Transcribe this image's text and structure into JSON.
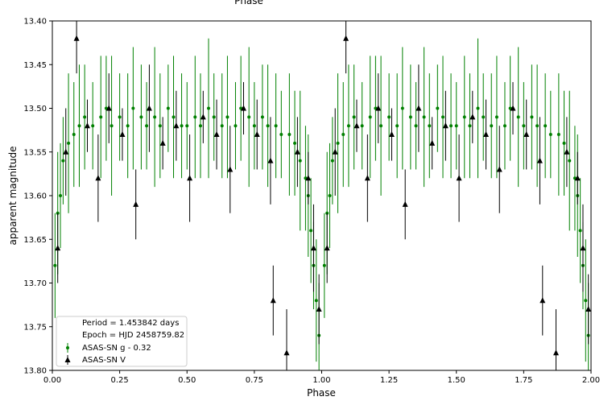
{
  "chart_data": {
    "type": "scatter",
    "top_title": "Phase",
    "xlabel": "Phase",
    "ylabel": "apparent magnitude",
    "xlim": [
      0.0,
      2.0
    ],
    "ylim": [
      13.8,
      13.4
    ],
    "y_inverted": true,
    "grid": false,
    "x_ticks": [
      "0.00",
      "0.25",
      "0.50",
      "0.75",
      "1.00",
      "1.25",
      "1.50",
      "1.75",
      "2.00"
    ],
    "y_ticks": [
      "13.40",
      "13.45",
      "13.50",
      "13.55",
      "13.60",
      "13.65",
      "13.70",
      "13.75",
      "13.80"
    ],
    "legend": {
      "placement": "lower-left",
      "entries": [
        "Period = 1.453842 days",
        "Epoch = HJD 2458759.82",
        "ASAS-SN g - 0.32",
        "ASAS-SN V"
      ]
    },
    "series": [
      {
        "name": "ASAS-SN g - 0.32",
        "marker": "small-dot-with-errorbar",
        "color": "#008000",
        "phase": [
          0.01,
          0.02,
          0.03,
          0.04,
          0.06,
          0.08,
          0.1,
          0.12,
          0.15,
          0.18,
          0.2,
          0.22,
          0.25,
          0.28,
          0.3,
          0.33,
          0.35,
          0.38,
          0.4,
          0.43,
          0.45,
          0.48,
          0.5,
          0.53,
          0.55,
          0.58,
          0.6,
          0.63,
          0.65,
          0.68,
          0.7,
          0.73,
          0.75,
          0.78,
          0.8,
          0.83,
          0.85,
          0.88,
          0.9,
          0.92,
          0.94,
          0.95,
          0.96,
          0.97,
          0.98,
          0.99
        ],
        "magnitude": [
          13.68,
          13.62,
          13.6,
          13.56,
          13.54,
          13.53,
          13.52,
          13.51,
          13.52,
          13.51,
          13.5,
          13.52,
          13.51,
          13.52,
          13.5,
          13.51,
          13.52,
          13.51,
          13.52,
          13.5,
          13.51,
          13.52,
          13.52,
          13.51,
          13.52,
          13.5,
          13.51,
          13.52,
          13.51,
          13.52,
          13.5,
          13.51,
          13.52,
          13.51,
          13.52,
          13.52,
          13.53,
          13.53,
          13.54,
          13.56,
          13.58,
          13.6,
          13.64,
          13.68,
          13.72,
          13.76
        ],
        "error": [
          0.06,
          0.07,
          0.06,
          0.05,
          0.08,
          0.06,
          0.07,
          0.06,
          0.05,
          0.07,
          0.06,
          0.08,
          0.05,
          0.06,
          0.07,
          0.06,
          0.05,
          0.08,
          0.06,
          0.05,
          0.07,
          0.06,
          0.05,
          0.07,
          0.06,
          0.08,
          0.05,
          0.06,
          0.07,
          0.05,
          0.06,
          0.08,
          0.05,
          0.06,
          0.07,
          0.06,
          0.05,
          0.07,
          0.06,
          0.08,
          0.06,
          0.07,
          0.06,
          0.05,
          0.07,
          0.06
        ]
      },
      {
        "name": "ASAS-SN V",
        "marker": "triangle-up",
        "color": "#000000",
        "phase": [
          0.02,
          0.05,
          0.09,
          0.13,
          0.17,
          0.21,
          0.26,
          0.31,
          0.36,
          0.41,
          0.46,
          0.51,
          0.56,
          0.61,
          0.66,
          0.71,
          0.76,
          0.81,
          0.82,
          0.87,
          0.91,
          0.95,
          0.97,
          0.99
        ],
        "magnitude": [
          13.66,
          13.55,
          13.42,
          13.52,
          13.58,
          13.5,
          13.53,
          13.61,
          13.5,
          13.54,
          13.52,
          13.58,
          13.51,
          13.53,
          13.57,
          13.5,
          13.53,
          13.56,
          13.72,
          13.78,
          13.55,
          13.58,
          13.66,
          13.73
        ],
        "error": [
          0.04,
          0.05,
          0.04,
          0.03,
          0.05,
          0.04,
          0.03,
          0.04,
          0.05,
          0.03,
          0.04,
          0.05,
          0.03,
          0.04,
          0.05,
          0.03,
          0.04,
          0.05,
          0.04,
          0.05,
          0.04,
          0.03,
          0.05,
          0.04
        ]
      }
    ]
  }
}
